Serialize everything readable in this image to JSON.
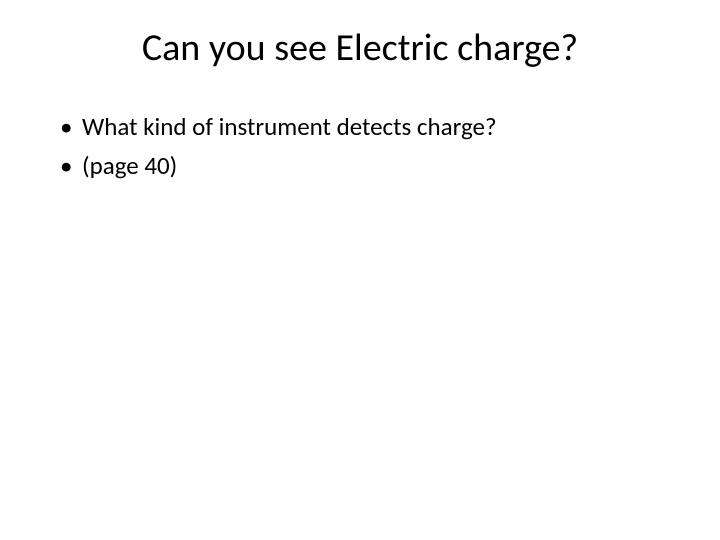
{
  "slide": {
    "title": "Can you see Electric charge?",
    "bullets": [
      "What kind of instrument detects charge?",
      "(page 40)"
    ],
    "background_color": "#ffffff",
    "text_color": "#000000",
    "title_fontsize": 38,
    "bullet_fontsize": 25
  }
}
